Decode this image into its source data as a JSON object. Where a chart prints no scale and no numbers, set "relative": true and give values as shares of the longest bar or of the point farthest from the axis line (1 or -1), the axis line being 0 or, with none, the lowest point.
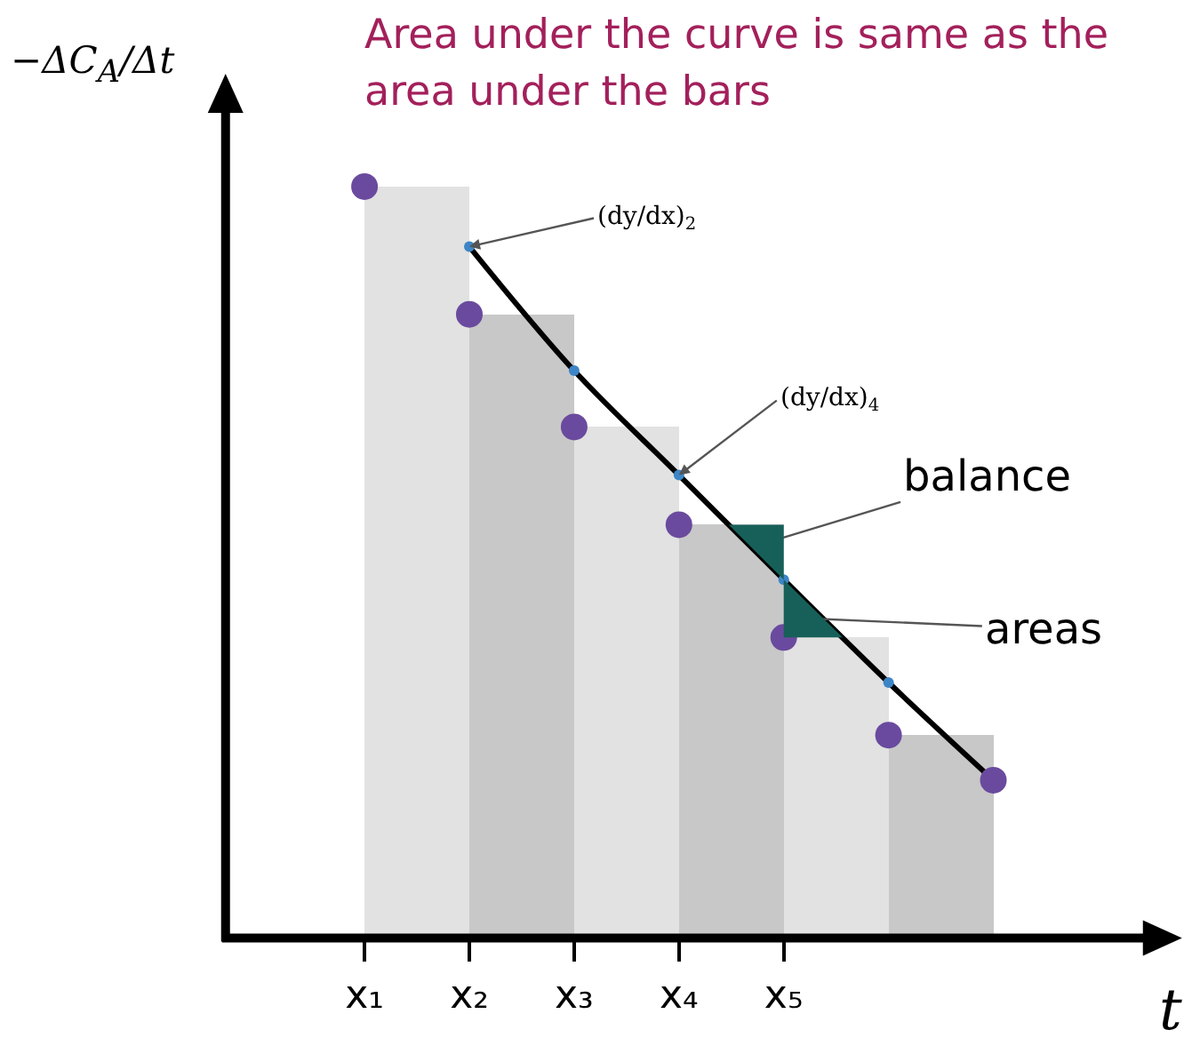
{
  "chart_data": {
    "type": "bar",
    "relative": true,
    "title": "Area under the curve is same as the area under the bars",
    "ylabel": "−ΔC$_{A}$/Δt",
    "xlabel": "t",
    "categories": [
      "x₁",
      "x₂",
      "x₃",
      "x₄",
      "x₅",
      null,
      null
    ],
    "series": [
      {
        "values": [
          1,
          0.83,
          0.68,
          0.55,
          0.4,
          0.27,
          null
        ],
        "colors": [
          "#e1e2e1",
          "#c8c8c8",
          "#e1e2e1",
          "#c8c8c8",
          "#e1e2e1",
          "#c8c8c8",
          null
        ]
      },
      {
        "type": "line",
        "color": "#000000",
        "values": [
          null,
          0.92,
          0.755,
          0.616,
          0.477,
          0.34,
          0.21
        ]
      },
      {
        "type": "scatter",
        "color": "#3d85c6",
        "values": [
          null,
          0.92,
          0.755,
          0.616,
          0.477,
          0.34,
          null
        ]
      },
      {
        "type": "scatter",
        "color": "#6a4a9e",
        "values": [
          1,
          0.83,
          0.68,
          0.55,
          0.4,
          0.27,
          0.21
        ]
      }
    ],
    "annotations": [
      {
        "text": "(dy/dx)$_{2}$",
        "x": "x₂",
        "y": 0.92
      },
      {
        "text": "(dy/dx)$_{4}$",
        "x": "x₄",
        "y": 0.616
      },
      "balance",
      "areas"
    ],
    "grid": false,
    "legend": false
  }
}
